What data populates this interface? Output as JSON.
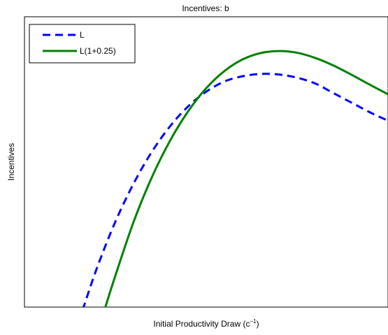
{
  "chart_data": {
    "type": "line",
    "title": "Incentives: b",
    "xlabel_main": "Initial Productivity Draw (c",
    "xlabel_sup": "−1",
    "xlabel_close": ")",
    "ylabel": "Incentives",
    "xticks": [],
    "yticks": [],
    "xlim": [
      0,
      1
    ],
    "ylim": [
      0,
      1
    ],
    "grid": false,
    "legend_position": "top-left",
    "series": [
      {
        "name": "L",
        "color": "#0000ff",
        "style": "dashed",
        "x": [
          0.16,
          0.2,
          0.25,
          0.3,
          0.35,
          0.4,
          0.45,
          0.5,
          0.55,
          0.6,
          0.65,
          0.7,
          0.75,
          0.8,
          0.85,
          0.9,
          0.95,
          1.0
        ],
        "y": [
          -0.01,
          0.137,
          0.294,
          0.425,
          0.534,
          0.622,
          0.691,
          0.742,
          0.777,
          0.795,
          0.803,
          0.801,
          0.79,
          0.77,
          0.737,
          0.704,
          0.671,
          0.642
        ]
      },
      {
        "name": "L(1+0.25)",
        "color": "#008000",
        "style": "solid",
        "x": [
          0.22,
          0.25,
          0.3,
          0.35,
          0.4,
          0.45,
          0.5,
          0.55,
          0.6,
          0.65,
          0.7,
          0.75,
          0.8,
          0.85,
          0.9,
          0.95,
          1.0
        ],
        "y": [
          -0.01,
          0.108,
          0.293,
          0.446,
          0.572,
          0.674,
          0.754,
          0.813,
          0.853,
          0.875,
          0.882,
          0.876,
          0.858,
          0.832,
          0.8,
          0.766,
          0.733
        ]
      }
    ]
  }
}
